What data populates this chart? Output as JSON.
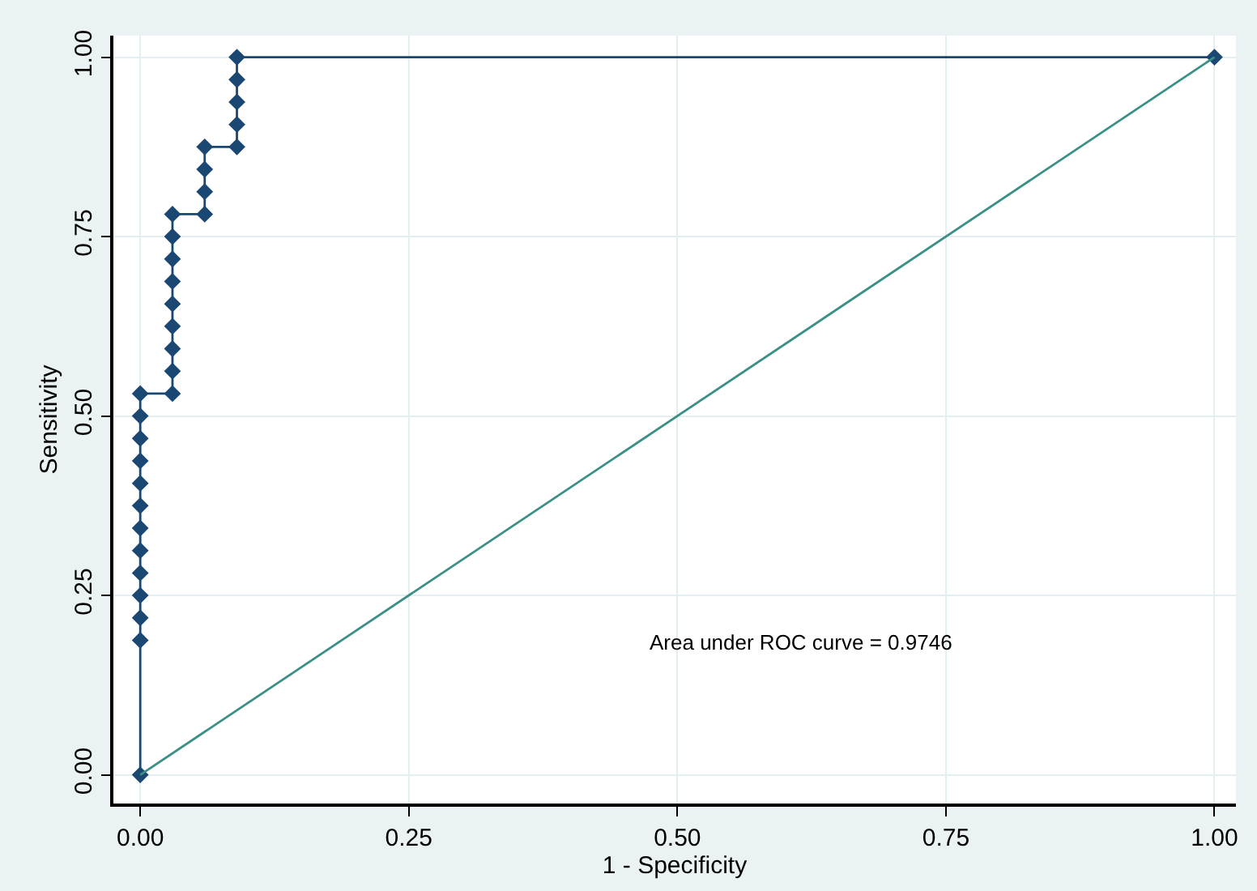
{
  "chart_data": {
    "type": "line",
    "xlabel": "1 - Specificity",
    "ylabel": "Sensitivity",
    "series": [
      {
        "color": "#1b4872",
        "marker": "diamond",
        "x": [
          0,
          0,
          0,
          0,
          0,
          0,
          0,
          0,
          0,
          0,
          0,
          0,
          0,
          0.03,
          0.03,
          0.03,
          0.03,
          0.03,
          0.03,
          0.03,
          0.03,
          0.03,
          0.06,
          0.06,
          0.06,
          0.06,
          0.09,
          0.09,
          0.09,
          0.09,
          0.09,
          1
        ],
        "values": [
          0,
          0.1875,
          0.21875,
          0.25,
          0.28125,
          0.3125,
          0.34375,
          0.375,
          0.40625,
          0.4375,
          0.46875,
          0.5,
          0.53125,
          0.53125,
          0.5625,
          0.59375,
          0.625,
          0.65625,
          0.6875,
          0.71875,
          0.75,
          0.78125,
          0.78125,
          0.8125,
          0.84375,
          0.875,
          0.875,
          0.90625,
          0.9375,
          0.96875,
          1,
          1
        ]
      },
      {
        "color": "#3a8f86",
        "marker": "none",
        "x": [
          0,
          1
        ],
        "values": [
          0,
          1
        ]
      }
    ],
    "xlim": [
      -0.025,
      1.02
    ],
    "ylim": [
      -0.04,
      1.03
    ],
    "xticks": [
      {
        "value": 0,
        "label": "0.00"
      },
      {
        "value": 0.25,
        "label": "0.25"
      },
      {
        "value": 0.5,
        "label": "0.50"
      },
      {
        "value": 0.75,
        "label": "0.75"
      },
      {
        "value": 1,
        "label": "1.00"
      }
    ],
    "yticks": [
      {
        "value": 0,
        "label": "0.00"
      },
      {
        "value": 0.25,
        "label": "0.25"
      },
      {
        "value": 0.5,
        "label": "0.50"
      },
      {
        "value": 0.75,
        "label": "0.75"
      },
      {
        "value": 1,
        "label": "1.00"
      }
    ],
    "grid": true,
    "legend": false,
    "annotations": [
      "Area under ROC curve = 0.9746"
    ]
  }
}
